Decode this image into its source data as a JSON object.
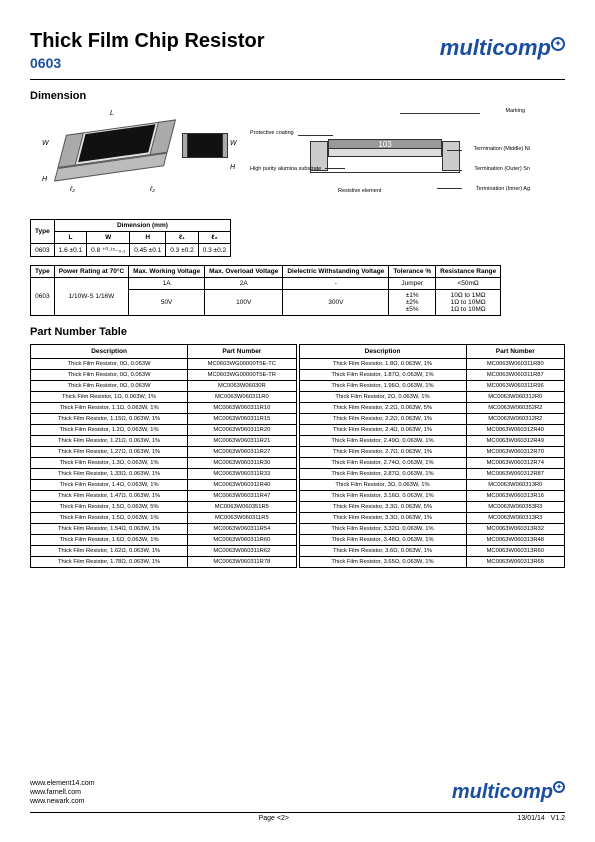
{
  "header": {
    "title": "Thick Film Chip Resistor",
    "subtitle": "0603",
    "brand": "multicomp"
  },
  "sections": {
    "dimension": "Dimension",
    "part_number": "Part Number Table"
  },
  "dim_diagram": {
    "L": "L",
    "W": "W",
    "H": "H",
    "l2a": "ℓ₂",
    "l2b": "ℓ₂",
    "Wb": "W",
    "Hb": "H"
  },
  "cross_labels": {
    "marking": "Marking",
    "protective": "Protective coating",
    "substrate": "High purity alumina substrate",
    "resistive": "Resistive element",
    "term_mid": "Termination (Middle) Ni",
    "term_out": "Termination (Outer) Sn",
    "term_in": "Termination (Inner) Ag",
    "num": "103"
  },
  "dim_table": {
    "headers": {
      "type": "Type",
      "group": "Dimension (mm)",
      "L": "L",
      "W": "W",
      "H": "H",
      "l1": "ℓ₁",
      "l2": "ℓ₂"
    },
    "row": {
      "type": "0603",
      "L": "1.6 ±0.1",
      "W": "0.8 ⁺⁰·¹⁵₋₀.₁",
      "H": "0.45 ±0.1",
      "l1": "0.3 ±0.2",
      "l2": "0.3 ±0.2"
    }
  },
  "spec_table": {
    "headers": {
      "type": "Type",
      "power": "Power Rating at 70°C",
      "mwv": "Max. Working Voltage",
      "mov": "Max. Overload Voltage",
      "dwv": "Dielectric Withstanding Voltage",
      "tol": "Tolerance %",
      "range": "Resistance Range"
    },
    "rows": [
      {
        "type": "",
        "power": "",
        "mwv": "1A",
        "mov": "2A",
        "dwv": "-",
        "tol": "Jumper",
        "range": "<50mΩ"
      },
      {
        "type": "0603",
        "power": "1/10W-S 1/16W",
        "mwv": "50V",
        "mov": "100V",
        "dwv": "300V",
        "tol": "±1%\n±2%\n±5%",
        "range": "10Ω to 1MΩ\n1Ω to 10MΩ\n1Ω to 10MΩ"
      }
    ]
  },
  "part_table": {
    "headers": {
      "desc": "Description",
      "pn": "Part Number"
    },
    "left": [
      [
        "Thick Film Resistor, 0Ω, 0.063W",
        "MC0603WG00000T5E-TC"
      ],
      [
        "Thick Film Resistor, 0Ω, 0.063W",
        "MC0603WG00000T5E-TR"
      ],
      [
        "Thick Film Resistor, 0Ω, 0.063W",
        "MC0063W06030R"
      ],
      [
        "Thick Film Resistor, 1Ω, 0.063W, 1%",
        "MC0063W060311R0"
      ],
      [
        "Thick Film Resistor, 1.1Ω, 0.063W, 1%",
        "MC0063W060311R10"
      ],
      [
        "Thick Film Resistor, 1.15Ω, 0.063W, 1%",
        "MC0063W060311R15"
      ],
      [
        "Thick Film Resistor, 1.2Ω, 0.063W, 1%",
        "MC0063W060311R20"
      ],
      [
        "Thick Film Resistor, 1.21Ω, 0.063W, 1%",
        "MC0063W060311R21"
      ],
      [
        "Thick Film Resistor, 1.27Ω, 0.063W, 1%",
        "MC0063W060311R27"
      ],
      [
        "Thick Film Resistor, 1.3Ω, 0.063W, 1%",
        "MC0063W060311R30"
      ],
      [
        "Thick Film Resistor, 1.33Ω, 0.063W, 1%",
        "MC0063W060311R33"
      ],
      [
        "Thick Film Resistor, 1.4Ω, 0.063W, 1%",
        "MC0063W060311R40"
      ],
      [
        "Thick Film Resistor, 1.47Ω, 0.063W, 1%",
        "MC0063W060311R47"
      ],
      [
        "Thick Film Resistor, 1.5Ω, 0.063W, 5%",
        "MC0063W060351R5"
      ],
      [
        "Thick Film Resistor, 1.5Ω, 0.063W, 1%",
        "MC0063W060311R5"
      ],
      [
        "Thick Film Resistor, 1.54Ω, 0.063W, 1%",
        "MC0063W060311R54"
      ],
      [
        "Thick Film Resistor, 1.6Ω, 0.063W, 1%",
        "MC0063W060311R60"
      ],
      [
        "Thick Film Resistor, 1.62Ω, 0.063W, 1%",
        "MC0063W060311R62"
      ],
      [
        "Thick Film Resistor, 1.78Ω, 0.063W, 1%",
        "MC0063W060311R78"
      ]
    ],
    "right": [
      [
        "Thick Film Resistor, 1.8Ω, 0.063W, 1%",
        "MC0063W060311R80"
      ],
      [
        "Thick Film Resistor, 1.87Ω, 0.063W, 1%",
        "MC0063W060311R87"
      ],
      [
        "Thick Film Resistor, 1.96Ω, 0.063W, 1%",
        "MC0063W060311R96"
      ],
      [
        "Thick Film Resistor, 2Ω, 0.063W, 1%",
        "MC0063W060312R0"
      ],
      [
        "Thick Film Resistor, 2.2Ω, 0.063W, 5%",
        "MC0063W060352R2"
      ],
      [
        "Thick Film Resistor, 2.2Ω, 0.063W, 1%",
        "MC0063W060312R2"
      ],
      [
        "Thick Film Resistor, 2.4Ω, 0.063W, 1%",
        "MC0063W060312R40"
      ],
      [
        "Thick Film Resistor, 2.49Ω, 0.063W, 1%",
        "MC0063W060312R49"
      ],
      [
        "Thick Film Resistor, 2.7Ω, 0.063W, 1%",
        "MC0063W060312R70"
      ],
      [
        "Thick Film Resistor, 2.74Ω, 0.063W, 1%",
        "MC0063W060312R74"
      ],
      [
        "Thick Film Resistor, 2.87Ω, 0.063W, 1%",
        "MC0063W060312R87"
      ],
      [
        "Thick Film Resistor, 3Ω, 0.063W, 1%",
        "MC0063W060313R0"
      ],
      [
        "Thick Film Resistor, 3.16Ω, 0.063W, 1%",
        "MC0063W060313R16"
      ],
      [
        "Thick Film Resistor, 3.3Ω, 0.063W, 5%",
        "MC0063W060353R3"
      ],
      [
        "Thick Film Resistor, 3.3Ω, 0.063W, 1%",
        "MC0063W060313R3"
      ],
      [
        "Thick Film Resistor, 3.32Ω, 0.063W, 1%",
        "MC0063W060313R32"
      ],
      [
        "Thick Film Resistor, 3.48Ω, 0.063W, 1%",
        "MC0063W060313R48"
      ],
      [
        "Thick Film Resistor, 3.6Ω, 0.063W, 1%",
        "MC0063W060313R60"
      ],
      [
        "Thick Film Resistor, 3.65Ω, 0.063W, 1%",
        "MC0063W060313R65"
      ]
    ]
  },
  "footer": {
    "links": [
      "www.element14.com",
      "www.farnell.com",
      "www.newark.com"
    ],
    "page": "Page <2>",
    "date": "13/01/14",
    "version": "V1.2",
    "brand": "multicomp"
  }
}
